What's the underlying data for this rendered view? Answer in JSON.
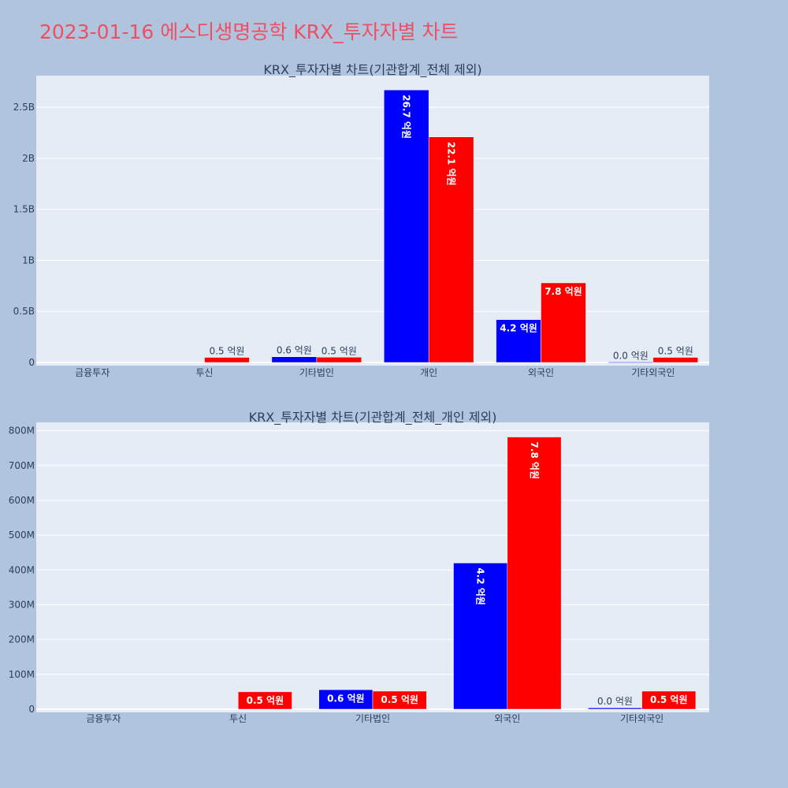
{
  "page": {
    "title": "2023-01-16 에스디생명공학 KRX_투자자별 차트"
  },
  "colors": {
    "buy": "#0000ff",
    "sell": "#ff0000",
    "plot_bg": "#e5ecf6",
    "page_bg": "#b0c4de",
    "title": "#ef4e63"
  },
  "chart_data": [
    {
      "type": "bar",
      "title": "KRX_투자자별 차트(기관합계_전체 제외)",
      "categories": [
        "금융투자",
        "투신",
        "기타법인",
        "개인",
        "외국인",
        "기타외국인"
      ],
      "series": [
        {
          "values": [
            0,
            0,
            56000000,
            2670000000,
            420000000,
            4000000
          ],
          "labels": [
            "",
            "",
            "0.6 억원",
            "26.7 억원",
            "4.2 억원",
            "0.0 억원"
          ]
        },
        {
          "values": [
            0,
            50000000,
            52000000,
            2210000000,
            780000000,
            50000000
          ],
          "labels": [
            "",
            "0.5 억원",
            "0.5 억원",
            "22.1 억원",
            "7.8 억원",
            "0.5 억원"
          ]
        }
      ],
      "y_ticks": [
        {
          "value": 0,
          "label": "0"
        },
        {
          "value": 500000000,
          "label": "0.5B"
        },
        {
          "value": 1000000000,
          "label": "1B"
        },
        {
          "value": 1500000000,
          "label": "1.5B"
        },
        {
          "value": 2000000000,
          "label": "2B"
        },
        {
          "value": 2500000000,
          "label": "2.5B"
        }
      ],
      "ylim": [
        0,
        2810000000
      ],
      "grid": true
    },
    {
      "type": "bar",
      "title": "KRX_투자자별 차트(기관합계_전체_개인 제외)",
      "categories": [
        "금융투자",
        "투신",
        "기타법인",
        "외국인",
        "기타외국인"
      ],
      "series": [
        {
          "values": [
            0,
            0,
            56000000,
            420000000,
            4000000
          ],
          "labels": [
            "",
            "",
            "0.6 억원",
            "4.2 억원",
            "0.0 억원"
          ]
        },
        {
          "values": [
            0,
            50000000,
            52000000,
            782000000,
            52000000
          ],
          "labels": [
            "",
            "0.5 억원",
            "0.5 억원",
            "7.8 억원",
            "0.5 억원"
          ]
        }
      ],
      "y_ticks": [
        {
          "value": 0,
          "label": "0"
        },
        {
          "value": 100000000,
          "label": "100M"
        },
        {
          "value": 200000000,
          "label": "200M"
        },
        {
          "value": 300000000,
          "label": "300M"
        },
        {
          "value": 400000000,
          "label": "400M"
        },
        {
          "value": 500000000,
          "label": "500M"
        },
        {
          "value": 600000000,
          "label": "600M"
        },
        {
          "value": 700000000,
          "label": "700M"
        },
        {
          "value": 800000000,
          "label": "800M"
        }
      ],
      "ylim": [
        0,
        824000000
      ],
      "grid": true
    }
  ]
}
